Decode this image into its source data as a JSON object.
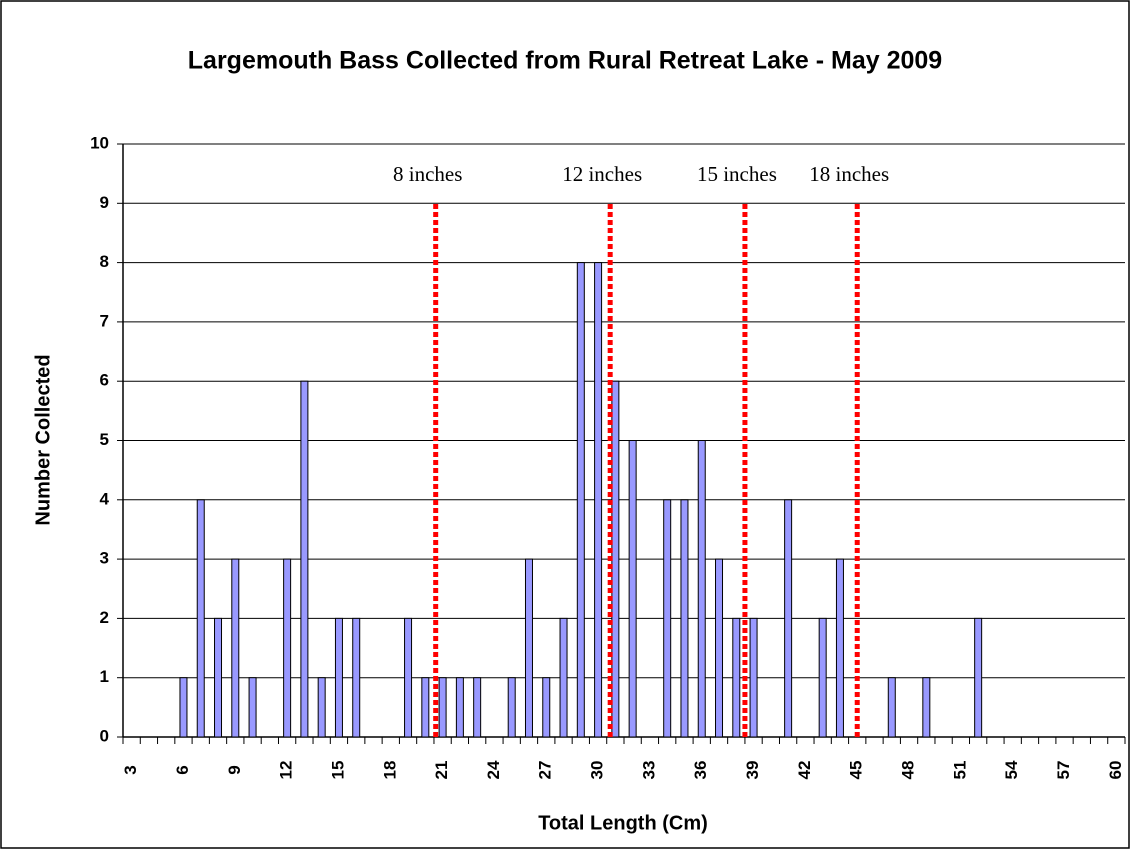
{
  "chart_data": {
    "type": "bar",
    "title": "Largemouth Bass Collected from Rural Retreat Lake - May 2009",
    "xlabel": "Total Length (Cm)",
    "ylabel": "Number Collected",
    "categories": [
      3,
      null,
      null,
      6,
      null,
      null,
      9,
      null,
      null,
      12,
      null,
      null,
      15,
      null,
      null,
      18,
      null,
      null,
      21,
      null,
      null,
      24,
      null,
      null,
      27,
      null,
      null,
      30,
      null,
      null,
      33,
      null,
      null,
      36,
      null,
      null,
      39,
      null,
      null,
      42,
      null,
      null,
      45,
      null,
      null,
      48,
      null,
      null,
      51,
      null,
      null,
      54,
      null,
      null,
      57,
      null,
      null,
      60
    ],
    "values": [
      0,
      0,
      0,
      1,
      4,
      2,
      3,
      1,
      0,
      3,
      6,
      1,
      2,
      2,
      0,
      0,
      2,
      1,
      1,
      1,
      1,
      0,
      1,
      3,
      1,
      2,
      8,
      8,
      6,
      5,
      0,
      4,
      4,
      5,
      3,
      2,
      2,
      0,
      4,
      0,
      2,
      3,
      0,
      0,
      1,
      0,
      1,
      0,
      0,
      2,
      0,
      0,
      0,
      0,
      0,
      0,
      0,
      0
    ],
    "color": "#9999ff",
    "ylim": [
      0,
      10
    ],
    "yticks": [
      0,
      1,
      2,
      3,
      4,
      5,
      6,
      7,
      8,
      9,
      10
    ],
    "grid": true,
    "annotations": [
      {
        "text": "8 inches",
        "x": 20.6,
        "ymax": 9,
        "color": "#ff0000"
      },
      {
        "text": "12 inches",
        "x": 30.7,
        "ymax": 9,
        "color": "#ff0000"
      },
      {
        "text": "15 inches",
        "x": 38.5,
        "ymax": 9,
        "color": "#ff0000"
      },
      {
        "text": "18 inches",
        "x": 45,
        "ymax": 9,
        "color": "#ff0000"
      }
    ]
  }
}
